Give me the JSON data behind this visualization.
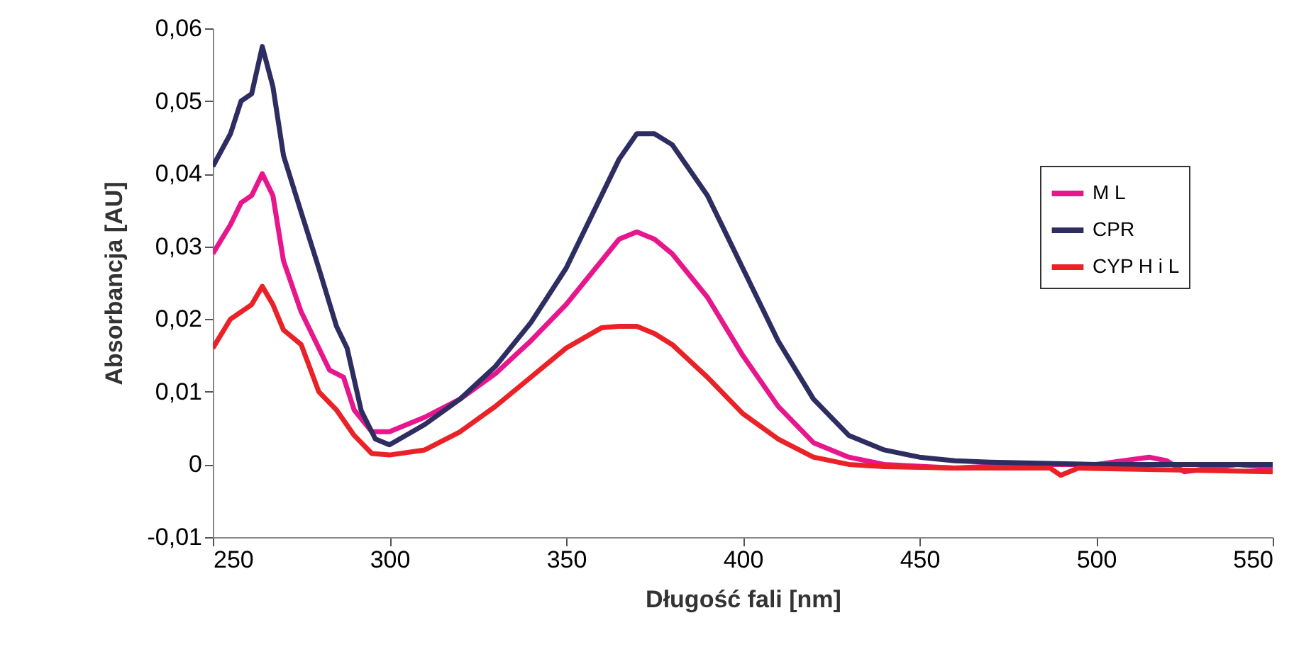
{
  "chart_data": {
    "type": "line",
    "xlabel": "Długość fali [nm]",
    "ylabel": "Absorbancja [AU]",
    "xlim": [
      250,
      550
    ],
    "xticks": [
      250,
      300,
      350,
      400,
      450,
      500,
      550
    ],
    "ylim": [
      -0.01,
      0.06
    ],
    "yticks": [
      {
        "value": -0.01,
        "label": "-0,01"
      },
      {
        "value": 0,
        "label": "0"
      },
      {
        "value": 0.01,
        "label": "0,01"
      },
      {
        "value": 0.02,
        "label": "0,02"
      },
      {
        "value": 0.03,
        "label": "0,03"
      },
      {
        "value": 0.04,
        "label": "0,04"
      },
      {
        "value": 0.05,
        "label": "0,05"
      },
      {
        "value": 0.06,
        "label": "0,06"
      }
    ],
    "grid": false,
    "legend": "right",
    "line_style": "solid",
    "marker": "none",
    "series": [
      {
        "name": "M L",
        "color": "#e8168c",
        "x": [
          250,
          255,
          258,
          261,
          264,
          267,
          270,
          275,
          280,
          283,
          287,
          290,
          295,
          300,
          310,
          320,
          330,
          340,
          350,
          360,
          365,
          370,
          375,
          380,
          390,
          400,
          410,
          420,
          430,
          440,
          460,
          480,
          500,
          515,
          520,
          525,
          540,
          550
        ],
        "values": [
          0.029,
          0.033,
          0.036,
          0.037,
          0.04,
          0.037,
          0.028,
          0.021,
          0.016,
          0.013,
          0.012,
          0.0075,
          0.0045,
          0.0045,
          0.0065,
          0.009,
          0.0125,
          0.017,
          0.022,
          0.028,
          0.031,
          0.032,
          0.031,
          0.029,
          0.023,
          0.015,
          0.008,
          0.003,
          0.001,
          0,
          -0.0005,
          0,
          0,
          0.001,
          0.0005,
          -0.001,
          0,
          -0.0005
        ]
      },
      {
        "name": "CPR",
        "color": "#2e2d62",
        "x": [
          250,
          255,
          258,
          261,
          264,
          267,
          270,
          275,
          280,
          285,
          288,
          292,
          296,
          300,
          310,
          320,
          330,
          340,
          350,
          360,
          365,
          370,
          375,
          380,
          390,
          400,
          410,
          420,
          430,
          440,
          450,
          460,
          470,
          500,
          550
        ],
        "values": [
          0.041,
          0.0455,
          0.05,
          0.051,
          0.0575,
          0.052,
          0.0425,
          0.0347,
          0.027,
          0.019,
          0.016,
          0.0074,
          0.0035,
          0.0027,
          0.0055,
          0.009,
          0.0135,
          0.0195,
          0.027,
          0.037,
          0.042,
          0.0455,
          0.0455,
          0.044,
          0.037,
          0.027,
          0.017,
          0.009,
          0.004,
          0.002,
          0.001,
          0.0005,
          0.0003,
          0,
          0
        ]
      },
      {
        "name": "CYP H i L",
        "color": "#ea2228",
        "x": [
          250,
          255,
          258,
          261,
          264,
          267,
          270,
          275,
          280,
          285,
          290,
          295,
          300,
          310,
          320,
          330,
          340,
          350,
          360,
          365,
          370,
          375,
          380,
          390,
          400,
          410,
          420,
          430,
          440,
          460,
          487,
          490,
          495,
          550
        ],
        "values": [
          0.016,
          0.02,
          0.021,
          0.022,
          0.0245,
          0.022,
          0.0185,
          0.0165,
          0.01,
          0.0075,
          0.004,
          0.0015,
          0.0013,
          0.002,
          0.0045,
          0.008,
          0.012,
          0.016,
          0.0188,
          0.019,
          0.019,
          0.018,
          0.0165,
          0.012,
          0.007,
          0.0035,
          0.001,
          0,
          -0.0003,
          -0.0005,
          -0.0005,
          -0.0015,
          -0.0005,
          -0.001
        ]
      }
    ]
  }
}
